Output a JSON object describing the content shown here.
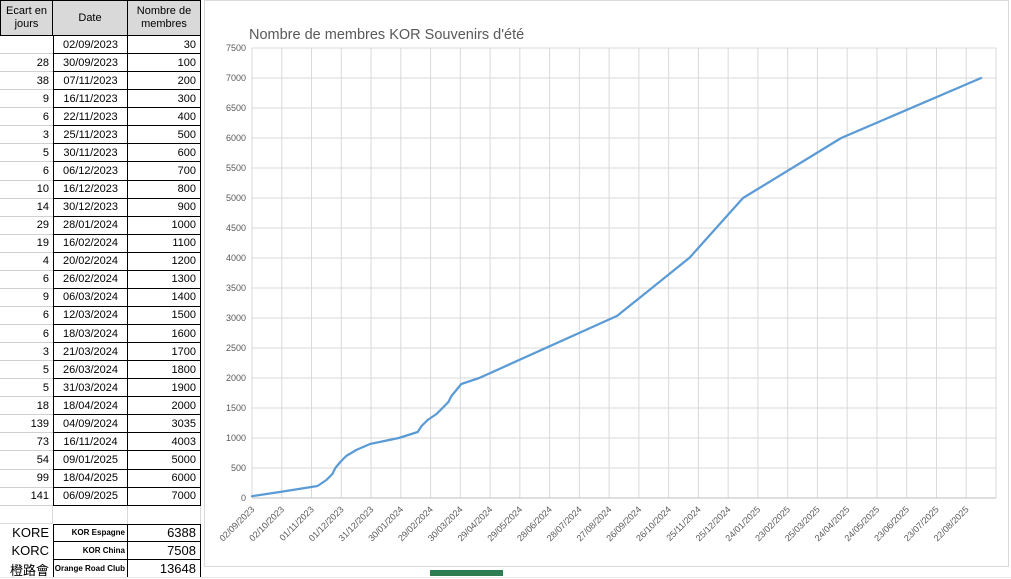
{
  "table": {
    "col1_header_lines": [
      "Ecart en",
      "jours"
    ],
    "col2_header": "Date",
    "col3_header_lines": [
      "Nombre de",
      "membres"
    ],
    "rows": [
      [
        "",
        "02/09/2023",
        "30"
      ],
      [
        "28",
        "30/09/2023",
        "100"
      ],
      [
        "38",
        "07/11/2023",
        "200"
      ],
      [
        "9",
        "16/11/2023",
        "300"
      ],
      [
        "6",
        "22/11/2023",
        "400"
      ],
      [
        "3",
        "25/11/2023",
        "500"
      ],
      [
        "5",
        "30/11/2023",
        "600"
      ],
      [
        "6",
        "06/12/2023",
        "700"
      ],
      [
        "10",
        "16/12/2023",
        "800"
      ],
      [
        "14",
        "30/12/2023",
        "900"
      ],
      [
        "29",
        "28/01/2024",
        "1000"
      ],
      [
        "19",
        "16/02/2024",
        "1100"
      ],
      [
        "4",
        "20/02/2024",
        "1200"
      ],
      [
        "6",
        "26/02/2024",
        "1300"
      ],
      [
        "9",
        "06/03/2024",
        "1400"
      ],
      [
        "6",
        "12/03/2024",
        "1500"
      ],
      [
        "6",
        "18/03/2024",
        "1600"
      ],
      [
        "3",
        "21/03/2024",
        "1700"
      ],
      [
        "5",
        "26/03/2024",
        "1800"
      ],
      [
        "5",
        "31/03/2024",
        "1900"
      ],
      [
        "18",
        "18/04/2024",
        "2000"
      ],
      [
        "139",
        "04/09/2024",
        "3035"
      ],
      [
        "73",
        "16/11/2024",
        "4003"
      ],
      [
        "54",
        "09/01/2025",
        "5000"
      ],
      [
        "99",
        "18/04/2025",
        "6000"
      ],
      [
        "141",
        "06/09/2025",
        "7000"
      ]
    ]
  },
  "summary_rows": [
    [
      "KORE",
      "KOR Espagne",
      "6388"
    ],
    [
      "KORC",
      "KOR China",
      "7508"
    ],
    [
      "橙路會",
      "Orange Road Club",
      "13648"
    ]
  ],
  "chart_data": {
    "type": "line",
    "title": "Nombre de membres KOR Souvenirs d'été",
    "x": [
      "02/09/2023",
      "30/09/2023",
      "07/11/2023",
      "16/11/2023",
      "22/11/2023",
      "25/11/2023",
      "30/11/2023",
      "06/12/2023",
      "16/12/2023",
      "30/12/2023",
      "28/01/2024",
      "16/02/2024",
      "20/02/2024",
      "26/02/2024",
      "06/03/2024",
      "12/03/2024",
      "18/03/2024",
      "21/03/2024",
      "26/03/2024",
      "31/03/2024",
      "18/04/2024",
      "04/09/2024",
      "16/11/2024",
      "09/01/2025",
      "18/04/2025",
      "06/09/2025"
    ],
    "values": [
      30,
      100,
      200,
      300,
      400,
      500,
      600,
      700,
      800,
      900,
      1000,
      1100,
      1200,
      1300,
      1400,
      1500,
      1600,
      1700,
      1800,
      1900,
      2000,
      3035,
      4003,
      5000,
      6000,
      7000
    ],
    "x_tick_labels": [
      "02/09/2023",
      "02/10/2023",
      "01/11/2023",
      "01/12/2023",
      "31/12/2023",
      "30/01/2024",
      "29/02/2024",
      "30/03/2024",
      "29/04/2024",
      "29/05/2024",
      "28/06/2024",
      "28/07/2024",
      "27/08/2024",
      "26/09/2024",
      "26/10/2024",
      "25/11/2024",
      "25/12/2024",
      "24/01/2025",
      "23/02/2025",
      "25/03/2025",
      "24/04/2025",
      "24/05/2025",
      "23/06/2025",
      "23/07/2025",
      "22/08/2025"
    ],
    "ylim": [
      0,
      7500
    ],
    "ytick_step": 500,
    "grid": true,
    "legend": "none",
    "line_color": "#5B9BD5",
    "grid_color": "#D9D9D9",
    "axis_color": "#BFBFBF",
    "label_color": "#595959"
  },
  "colors": {
    "header_bg": "#D9D9D9",
    "cell_border": "#000000",
    "green_thumb": "#2E7D52"
  }
}
